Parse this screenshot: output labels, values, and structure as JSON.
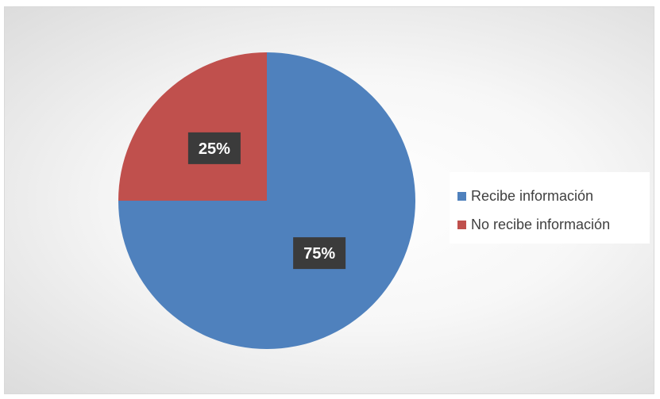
{
  "chart_data": {
    "type": "pie",
    "title": "",
    "categories": [
      "Recibe información",
      "No recibe información"
    ],
    "values": [
      75,
      25
    ],
    "data_labels": [
      "75%",
      "25%"
    ],
    "colors": [
      "#4f81bd",
      "#c0504d"
    ],
    "legend": "right",
    "start_angle": "12 o'clock",
    "direction": "clockwise"
  }
}
